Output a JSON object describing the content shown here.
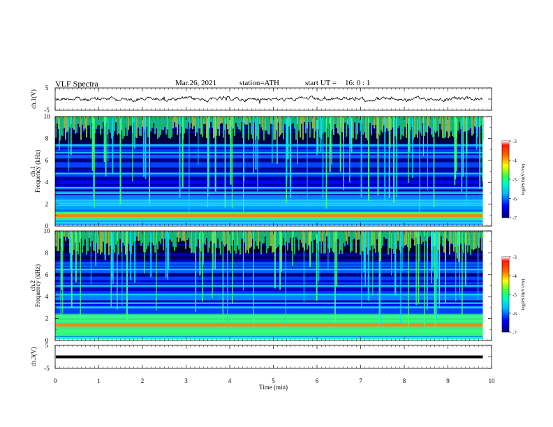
{
  "header": {
    "title": "VLF Spectra",
    "date": "Mar.26, 2021",
    "station": "station=ATH",
    "start": "start UT =",
    "start_time": "16: 0 : 1"
  },
  "chart_data": [
    {
      "type": "line",
      "name": "ch1-waveform",
      "ylabel": "ch.1(V)",
      "ylim": [
        -5,
        5
      ],
      "yticks": [
        "5",
        "-5"
      ],
      "xlim": [
        0,
        10
      ],
      "baseline": 0,
      "amplitude": 0.4,
      "color": "#000000"
    },
    {
      "type": "heatmap",
      "name": "ch1-spectrogram",
      "panel": "ch.1",
      "ylabel": "Frequency (kHz)",
      "ylim": [
        0,
        10
      ],
      "yticks": [
        "0",
        "2",
        "4",
        "6",
        "8",
        "10"
      ],
      "xlim": [
        0,
        9.8
      ],
      "colorbar": {
        "label": "log(PSD)(V²/Hz)",
        "range": [
          -7,
          -3
        ],
        "ticks": [
          "-3",
          "-4",
          "-5",
          "-6",
          "-7"
        ]
      },
      "bands_khz": [
        0.3,
        0.8,
        1.2,
        1.9,
        2.3,
        3.0,
        3.5,
        4.8,
        6.7,
        7.4
      ],
      "strong_band_khz": [
        0.6,
        1.3
      ]
    },
    {
      "type": "heatmap",
      "name": "ch2-spectrogram",
      "panel": "ch.2",
      "ylabel": "Frequency (kHz)",
      "ylim": [
        0,
        10
      ],
      "yticks": [
        "0",
        "2",
        "4",
        "6",
        "8",
        "10"
      ],
      "xlim": [
        0,
        9.8
      ],
      "colorbar": {
        "label": "log(PSD)(V²/Hz)",
        "range": [
          -7,
          -3
        ],
        "ticks": [
          "-3",
          "-4",
          "-5",
          "-6",
          "-7"
        ]
      },
      "bands_khz": [
        0.5,
        1.0,
        1.8,
        2.2,
        3.0,
        3.4,
        4.2,
        5.0,
        6.5
      ],
      "strong_band_khz": [
        0.4,
        2.4
      ]
    },
    {
      "type": "line",
      "name": "ch3-waveform",
      "ylabel": "ch.3(V)",
      "ylim": [
        -5,
        5
      ],
      "yticks": [
        "5",
        "-5"
      ],
      "xlim": [
        0,
        10
      ],
      "xlabel": "Time (min)",
      "xticks": [
        "0",
        "1",
        "2",
        "3",
        "4",
        "5",
        "6",
        "7",
        "8",
        "9",
        "10"
      ],
      "baseline": 0,
      "color": "#000000"
    }
  ]
}
